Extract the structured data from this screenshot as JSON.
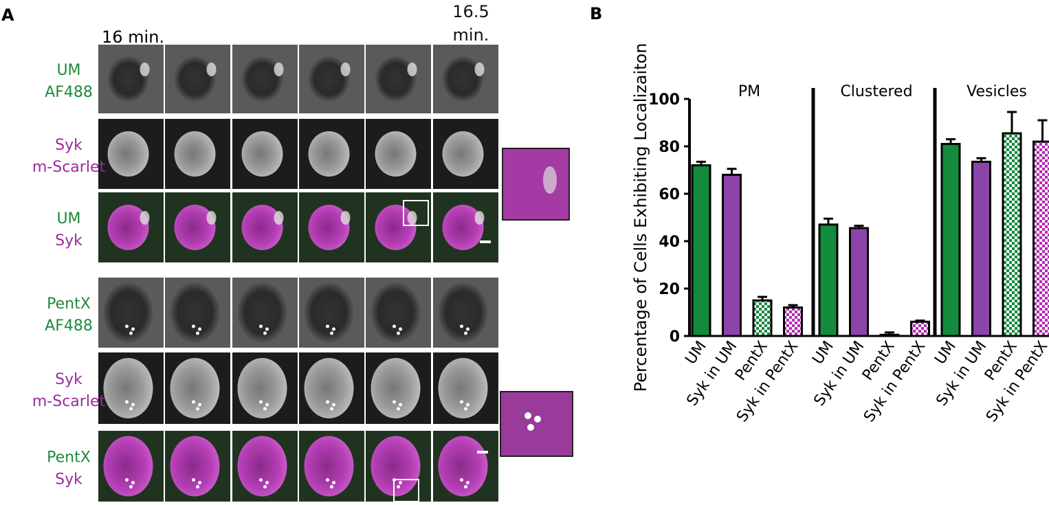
{
  "panel_a": {
    "label": "A",
    "time_start": "16 min.",
    "time_end": "16.5 min.",
    "rows": [
      {
        "lines": [
          "UM",
          "AF488"
        ],
        "colors": [
          "#1f8a3a",
          "#1f8a3a"
        ]
      },
      {
        "lines": [
          "Syk",
          "m-Scarlet"
        ],
        "colors": [
          "#9b2a9b",
          "#9b2a9b"
        ]
      },
      {
        "lines": [
          "UM",
          "Syk"
        ],
        "colors": [
          "#1f8a3a",
          "#9b2a9b"
        ]
      },
      {
        "lines": [
          "PentX",
          "AF488"
        ],
        "colors": [
          "#1f8a3a",
          "#1f8a3a"
        ]
      },
      {
        "lines": [
          "Syk",
          "m-Scarlet"
        ],
        "colors": [
          "#9b2a9b",
          "#9b2a9b"
        ]
      },
      {
        "lines": [
          "PentX",
          "Syk"
        ],
        "colors": [
          "#1f8a3a",
          "#9b2a9b"
        ]
      }
    ]
  },
  "chart_data": {
    "type": "bar",
    "panel_label": "B",
    "y_label": "Percentage of Cells Exhibiting Localizaiton",
    "ylim": [
      0,
      100
    ],
    "yticks": [
      0,
      20,
      40,
      60,
      80,
      100
    ],
    "colors": [
      "#138a3c",
      "#8d44a8",
      "#138a3c",
      "#b32bb3"
    ],
    "fills": [
      "solid",
      "solid",
      "checker",
      "checker"
    ],
    "groups": [
      {
        "name": "PM",
        "categories": [
          "UM",
          "Syk in UM",
          "PentX",
          "Syk in PentX"
        ],
        "values": [
          72,
          68,
          15,
          12
        ],
        "errors": [
          1.5,
          2.5,
          1.5,
          1
        ]
      },
      {
        "name": "Clustered",
        "categories": [
          "UM",
          "Syk in UM",
          "PentX",
          "Syk in PentX"
        ],
        "values": [
          47,
          45.5,
          0.5,
          6
        ],
        "errors": [
          2.5,
          1,
          1,
          0.5
        ]
      },
      {
        "name": "Vesicles",
        "categories": [
          "UM",
          "Syk in UM",
          "PentX",
          "Syk in PentX"
        ],
        "values": [
          81,
          73.5,
          85.5,
          82
        ],
        "errors": [
          2,
          1.5,
          9,
          9
        ]
      }
    ]
  }
}
